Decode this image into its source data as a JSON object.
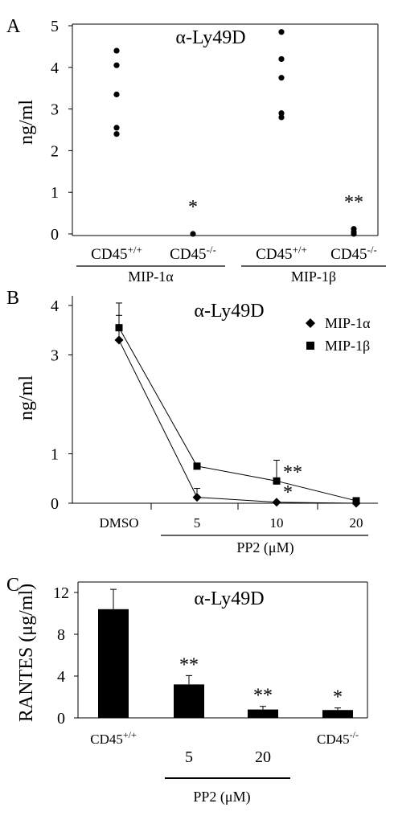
{
  "chart_data": [
    {
      "panel": "A",
      "type": "scatter",
      "title": "α-Ly49D",
      "ylabel": "ng/ml",
      "ylim": [
        0,
        5
      ],
      "yticks": [
        0,
        1,
        2,
        3,
        4,
        5
      ],
      "categories": [
        {
          "label": "CD45",
          "sup": "+/+",
          "values": [
            4.4,
            4.05,
            3.35,
            2.55,
            2.4
          ]
        },
        {
          "label": "CD45",
          "sup": "-/-",
          "values": [
            0.0
          ],
          "annotation": "*"
        },
        {
          "label": "CD45",
          "sup": "+/+",
          "values": [
            4.85,
            4.2,
            3.75,
            2.9,
            2.8
          ]
        },
        {
          "label": "CD45",
          "sup": "-/-",
          "values": [
            0.12,
            0.05,
            0.0
          ],
          "annotation": "**"
        }
      ],
      "groups": [
        {
          "label": "MIP-1α",
          "categories": [
            0,
            1
          ]
        },
        {
          "label": "MIP-1β",
          "categories": [
            2,
            3
          ]
        }
      ]
    },
    {
      "panel": "B",
      "type": "line",
      "title": "α-Ly49D",
      "ylabel": "ng/ml",
      "ylim": [
        0,
        4
      ],
      "yticks": [
        0,
        1,
        3,
        4
      ],
      "categories": [
        "DMSO",
        "5",
        "10",
        "20"
      ],
      "group_label": "PP2 (μM)",
      "legend_position": "top-right",
      "series": [
        {
          "name": "MIP-1α",
          "marker": "diamond",
          "values": [
            3.3,
            0.12,
            0.02,
            0.0
          ],
          "errors": [
            0.5,
            0.18,
            0.0,
            0.0
          ],
          "annotations": [
            "",
            "",
            "*",
            ""
          ]
        },
        {
          "name": "MIP-1β",
          "marker": "square",
          "values": [
            3.55,
            0.75,
            0.45,
            0.05
          ],
          "errors": [
            0.5,
            0.0,
            0.42,
            0.0
          ],
          "annotations": [
            "",
            "",
            "**",
            ""
          ]
        }
      ]
    },
    {
      "panel": "C",
      "type": "bar",
      "title": "α-Ly49D",
      "ylabel": "RANTES (μg/ml)",
      "ylim": [
        0,
        14
      ],
      "yticks": [
        0,
        4,
        8,
        12
      ],
      "categories": [
        {
          "label": "CD45",
          "sup": "+/+"
        },
        {
          "label": "5",
          "sup": ""
        },
        {
          "label": "20",
          "sup": ""
        },
        {
          "label": "CD45",
          "sup": "-/-"
        }
      ],
      "values": [
        10.4,
        3.2,
        0.8,
        0.75
      ],
      "errors": [
        1.9,
        0.85,
        0.3,
        0.2
      ],
      "annotations": [
        "",
        "**",
        "**",
        "*"
      ],
      "group_label": "PP2 (μM)",
      "color": "#000000"
    }
  ]
}
